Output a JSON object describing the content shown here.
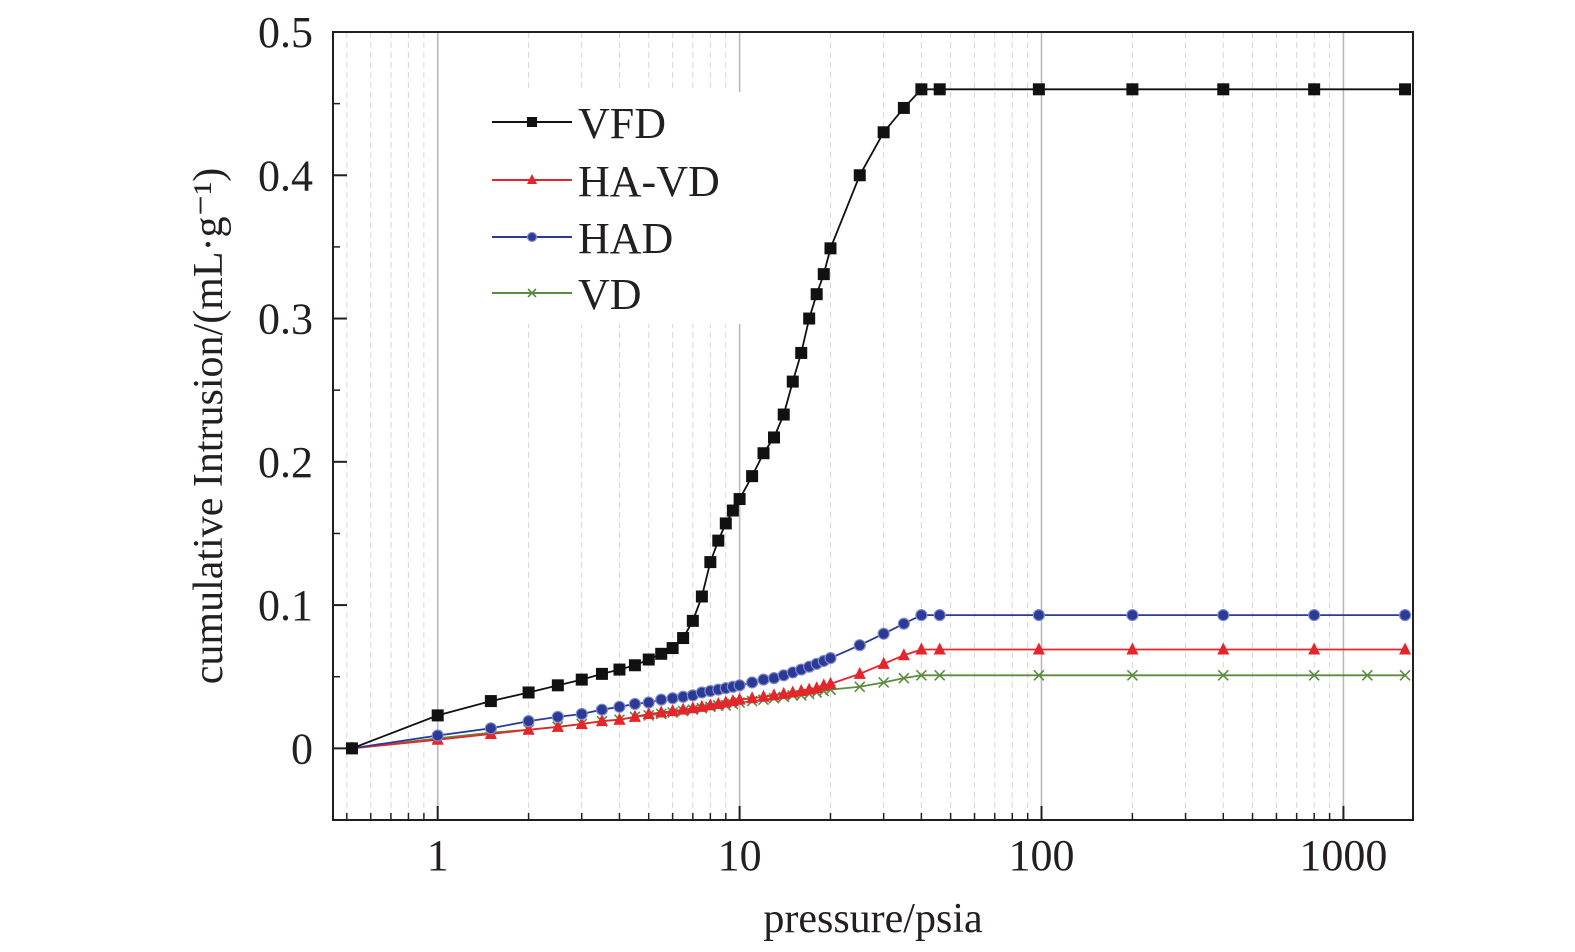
{
  "chart_data": {
    "type": "line",
    "xlabel": "pressure/psia",
    "ylabel": "cumulative Intrusion/(mL·g⁻¹)",
    "xscale": "log",
    "xlim": [
      0.45,
      1700
    ],
    "ylim": [
      -0.05,
      0.5
    ],
    "xticks": [
      1,
      10,
      100,
      1000
    ],
    "xtick_labels": [
      "1",
      "10",
      "100",
      "1000"
    ],
    "yticks": [
      0,
      0.1,
      0.2,
      0.3,
      0.4,
      0.5
    ],
    "ytick_labels": [
      "0",
      "0.1",
      "0.2",
      "0.3",
      "0.4",
      "0.5"
    ],
    "grid": true,
    "legend_position": "top-left",
    "series": [
      {
        "name": "VFD",
        "color": "#111111",
        "marker": "square",
        "x": [
          0.52,
          1.0,
          1.5,
          2.0,
          2.5,
          3.0,
          3.5,
          4.0,
          4.5,
          5.0,
          5.5,
          6.0,
          6.5,
          7.0,
          7.5,
          8.0,
          8.5,
          9.0,
          9.5,
          10,
          11,
          12,
          13,
          14,
          15,
          16,
          17,
          18,
          19,
          20,
          25,
          30,
          35,
          40,
          46,
          98,
          200,
          400,
          800,
          1600
        ],
        "y": [
          0.0,
          0.023,
          0.033,
          0.039,
          0.044,
          0.048,
          0.052,
          0.055,
          0.058,
          0.062,
          0.066,
          0.07,
          0.077,
          0.089,
          0.106,
          0.13,
          0.145,
          0.157,
          0.166,
          0.174,
          0.19,
          0.206,
          0.217,
          0.233,
          0.256,
          0.276,
          0.3,
          0.317,
          0.331,
          0.349,
          0.4,
          0.43,
          0.447,
          0.46,
          0.46,
          0.46,
          0.46,
          0.46,
          0.46,
          0.46
        ]
      },
      {
        "name": "HA-VD",
        "color": "#e5242b",
        "marker": "triangle",
        "x": [
          0.52,
          1.0,
          1.5,
          2.0,
          2.5,
          3.0,
          3.5,
          4.0,
          4.5,
          5.0,
          5.5,
          6.0,
          6.5,
          7.0,
          7.5,
          8.0,
          8.5,
          9.0,
          9.5,
          10,
          11,
          12,
          13,
          14,
          15,
          16,
          17,
          18,
          19,
          20,
          25,
          30,
          35,
          40,
          46,
          98,
          200,
          400,
          800,
          1600
        ],
        "y": [
          0.0,
          0.006,
          0.01,
          0.013,
          0.015,
          0.017,
          0.019,
          0.02,
          0.022,
          0.024,
          0.025,
          0.026,
          0.027,
          0.028,
          0.029,
          0.03,
          0.031,
          0.032,
          0.033,
          0.034,
          0.035,
          0.036,
          0.037,
          0.038,
          0.039,
          0.04,
          0.041,
          0.042,
          0.044,
          0.045,
          0.052,
          0.059,
          0.065,
          0.069,
          0.069,
          0.069,
          0.069,
          0.069,
          0.069,
          0.069
        ]
      },
      {
        "name": "HAD",
        "color": "#2b3a97",
        "marker": "circle",
        "x": [
          0.52,
          1.0,
          1.5,
          2.0,
          2.5,
          3.0,
          3.5,
          4.0,
          4.5,
          5.0,
          5.5,
          6.0,
          6.5,
          7.0,
          7.5,
          8.0,
          8.5,
          9.0,
          9.5,
          10,
          11,
          12,
          13,
          14,
          15,
          16,
          17,
          18,
          19,
          20,
          25,
          30,
          35,
          40,
          46,
          98,
          200,
          400,
          800,
          1600
        ],
        "y": [
          0.0,
          0.009,
          0.014,
          0.019,
          0.022,
          0.024,
          0.027,
          0.029,
          0.031,
          0.032,
          0.034,
          0.035,
          0.036,
          0.037,
          0.039,
          0.04,
          0.041,
          0.042,
          0.043,
          0.044,
          0.046,
          0.048,
          0.049,
          0.051,
          0.053,
          0.055,
          0.057,
          0.059,
          0.061,
          0.063,
          0.072,
          0.08,
          0.087,
          0.093,
          0.093,
          0.093,
          0.093,
          0.093,
          0.093,
          0.093
        ]
      },
      {
        "name": "VD",
        "color": "#5b8c3f",
        "marker": "x",
        "x": [
          0.52,
          1.0,
          1.5,
          2.0,
          2.5,
          3.0,
          3.5,
          4.0,
          4.5,
          5.0,
          5.5,
          6.0,
          6.5,
          7.0,
          7.5,
          8.0,
          8.5,
          9.0,
          9.5,
          10,
          11,
          12,
          13,
          14,
          15,
          16,
          17,
          18,
          19,
          20,
          25,
          30,
          35,
          40,
          46,
          98,
          200,
          400,
          800,
          1200,
          1600
        ],
        "y": [
          0.0,
          0.007,
          0.011,
          0.013,
          0.015,
          0.017,
          0.019,
          0.02,
          0.022,
          0.023,
          0.024,
          0.025,
          0.026,
          0.027,
          0.028,
          0.029,
          0.03,
          0.03,
          0.031,
          0.032,
          0.033,
          0.034,
          0.035,
          0.036,
          0.037,
          0.037,
          0.038,
          0.039,
          0.04,
          0.041,
          0.043,
          0.046,
          0.049,
          0.051,
          0.051,
          0.051,
          0.051,
          0.051,
          0.051,
          0.051,
          0.051
        ]
      }
    ]
  }
}
